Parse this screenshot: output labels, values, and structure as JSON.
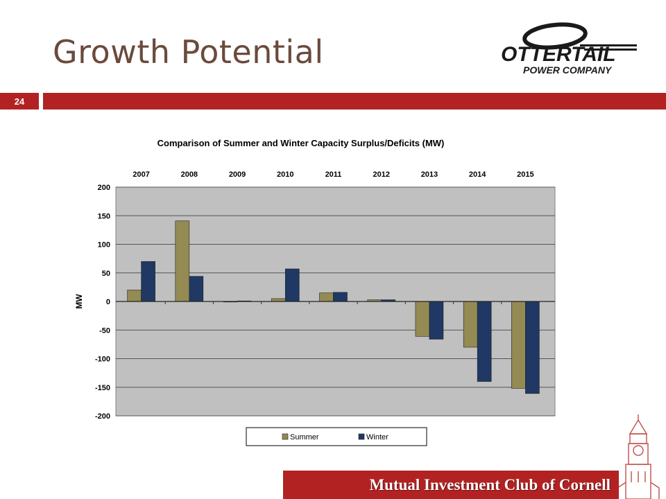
{
  "slide": {
    "title": "Growth Potential",
    "number": "24",
    "footer": "Mutual Investment Club of Cornell",
    "accent_color": "#b22222",
    "title_color": "#6b4a3c"
  },
  "logo": {
    "line1": "OTTERTAIL",
    "line2": "POWER COMPANY",
    "color": "#1a1a1a"
  },
  "chart_data": {
    "type": "bar",
    "title": "Comparison of Summer and Winter Capacity Surplus/Deficits (MW)",
    "ylabel": "MW",
    "xlabel": "",
    "categories": [
      "2007",
      "2008",
      "2009",
      "2010",
      "2011",
      "2012",
      "2013",
      "2014",
      "2015"
    ],
    "category_position": "top",
    "series": [
      {
        "name": "Summer",
        "color": "#948a54",
        "values": [
          20,
          141,
          0,
          5,
          15,
          3,
          -61,
          -80,
          -152
        ]
      },
      {
        "name": "Winter",
        "color": "#1f3864",
        "values": [
          70,
          44,
          1,
          57,
          16,
          3,
          -66,
          -140,
          -161
        ]
      }
    ],
    "ylim": [
      -200,
      200
    ],
    "yticks": [
      200,
      150,
      100,
      50,
      0,
      -50,
      -100,
      -150,
      -200
    ],
    "grid": true,
    "plot_background": "#c0c0c0",
    "legend_position": "bottom"
  }
}
